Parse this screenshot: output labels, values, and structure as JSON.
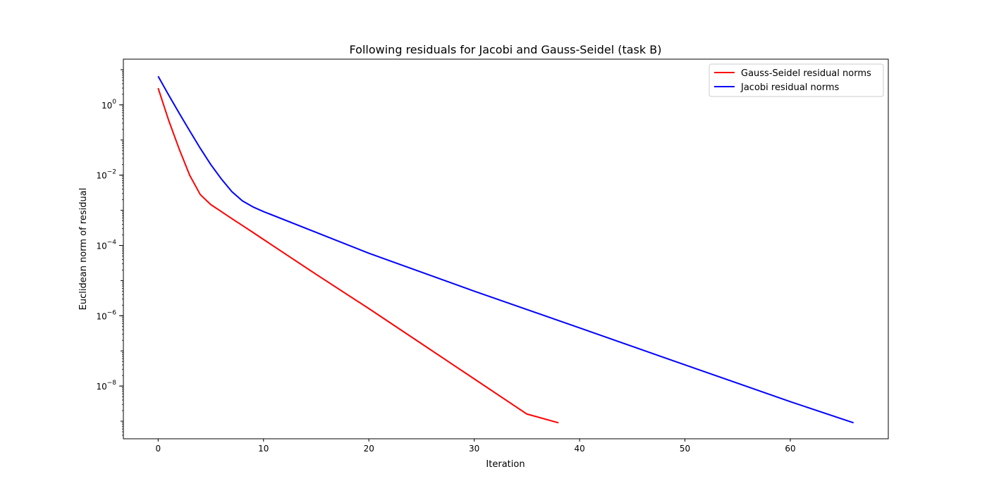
{
  "chart_data": {
    "type": "line",
    "title": "Following residuals for Jacobi and Gauss-Seidel (task B)",
    "xlabel": "Iteration",
    "ylabel": "Euclidean norm of residual",
    "xlim": [
      -3.3,
      69.3
    ],
    "ylim_log10": [
      -9.5,
      1.3
    ],
    "yscale": "log",
    "x_ticks": [
      0,
      10,
      20,
      30,
      40,
      50,
      60
    ],
    "y_ticks": [
      {
        "exp": 0,
        "label": "0"
      },
      {
        "exp": -2,
        "label": "−2"
      },
      {
        "exp": -4,
        "label": "−4"
      },
      {
        "exp": -6,
        "label": "−6"
      },
      {
        "exp": -8,
        "label": "−8"
      }
    ],
    "grid": false,
    "legend_position": "upper right",
    "series": [
      {
        "name": "Gauss-Seidel residual norms",
        "color": "#ff0000",
        "points": [
          [
            0,
            3.0
          ],
          [
            1,
            0.36
          ],
          [
            2,
            0.055
          ],
          [
            3,
            0.0098
          ],
          [
            4,
            0.0028
          ],
          [
            5,
            0.00145
          ],
          [
            6,
            0.00092
          ],
          [
            7,
            0.00058
          ],
          [
            8,
            0.00037
          ],
          [
            9,
            0.000235
          ],
          [
            10,
            0.000148
          ],
          [
            15,
            1.5e-05
          ],
          [
            20,
            1.6e-06
          ],
          [
            25,
            1.6e-07
          ],
          [
            30,
            1.6e-08
          ],
          [
            35,
            1.6e-09
          ],
          [
            38,
            9e-10
          ]
        ]
      },
      {
        "name": "Jacobi residual norms",
        "color": "#0000ff",
        "points": [
          [
            0,
            6.5
          ],
          [
            1,
            1.9
          ],
          [
            2,
            0.58
          ],
          [
            3,
            0.18
          ],
          [
            4,
            0.058
          ],
          [
            5,
            0.02
          ],
          [
            6,
            0.0078
          ],
          [
            7,
            0.0034
          ],
          [
            8,
            0.00185
          ],
          [
            9,
            0.00125
          ],
          [
            10,
            0.00092
          ],
          [
            20,
            6e-05
          ],
          [
            30,
            5e-06
          ],
          [
            40,
            4.5e-07
          ],
          [
            50,
            4e-08
          ],
          [
            60,
            3.6e-09
          ],
          [
            66,
            9e-10
          ]
        ]
      }
    ]
  }
}
